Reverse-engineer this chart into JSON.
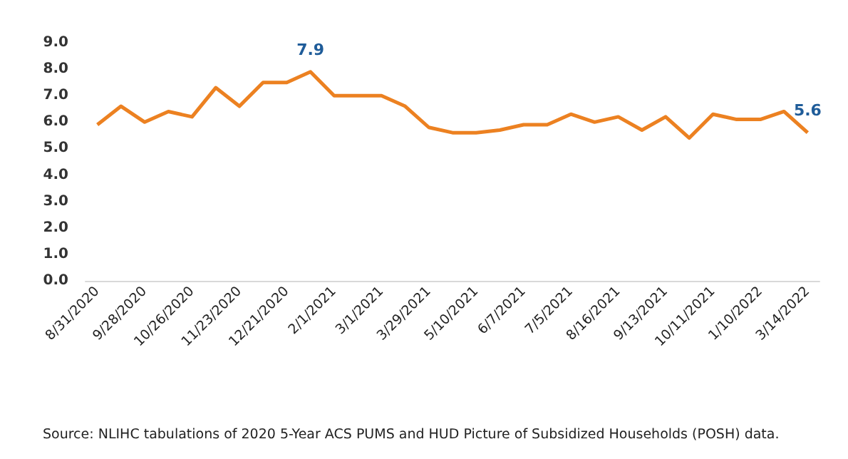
{
  "chart_data": {
    "type": "line",
    "categories": [
      "8/31/2020",
      null,
      "9/28/2020",
      null,
      "10/26/2020",
      null,
      "11/23/2020",
      null,
      "12/21/2020",
      null,
      "2/1/2021",
      null,
      "3/1/2021",
      null,
      "3/29/2021",
      null,
      "5/10/2021",
      null,
      "6/7/2021",
      null,
      "7/5/2021",
      null,
      "8/16/2021",
      null,
      "9/13/2021",
      null,
      "10/11/2021",
      null,
      "1/10/2022",
      null,
      "3/14/2022"
    ],
    "series": [
      {
        "color": "#ec8121",
        "values": [
          5.9,
          6.6,
          6.0,
          6.4,
          6.2,
          7.3,
          6.6,
          7.5,
          7.5,
          7.9,
          7.0,
          7.0,
          7.0,
          6.6,
          5.8,
          5.6,
          5.6,
          5.7,
          5.9,
          5.9,
          6.3,
          6.0,
          6.2,
          5.7,
          6.2,
          5.4,
          6.3,
          6.1,
          6.1,
          6.4,
          5.6
        ],
        "value_labels": [
          null,
          null,
          null,
          null,
          null,
          null,
          null,
          null,
          null,
          "7.9",
          null,
          null,
          null,
          null,
          null,
          null,
          null,
          null,
          null,
          null,
          null,
          null,
          null,
          null,
          null,
          null,
          null,
          null,
          null,
          null,
          "5.6"
        ]
      }
    ],
    "ylim": [
      0,
      9
    ],
    "yticks": [
      {
        "value": 0,
        "label": "0.0"
      },
      {
        "value": 1,
        "label": "1.0"
      },
      {
        "value": 2,
        "label": "2.0"
      },
      {
        "value": 3,
        "label": "3.0"
      },
      {
        "value": 4,
        "label": "4.0"
      },
      {
        "value": 5,
        "label": "5.0"
      },
      {
        "value": 6,
        "label": "6.0"
      },
      {
        "value": 7,
        "label": "7.0"
      },
      {
        "value": 8,
        "label": "8.0"
      },
      {
        "value": 9,
        "label": "9.0"
      }
    ],
    "grid": false,
    "marker": "none",
    "line_style": "solid",
    "annotations": [
      "Source: NLIHC tabulations of 2020 5-Year ACS PUMS and HUD Picture of Subsidized Households (POSH) data."
    ]
  }
}
